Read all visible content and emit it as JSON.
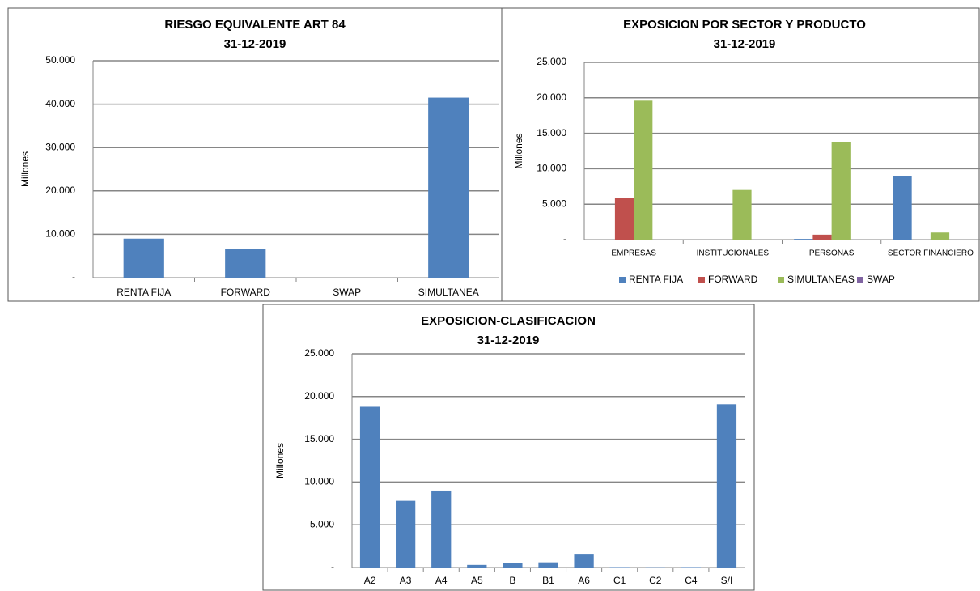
{
  "chart_data": [
    {
      "type": "bar",
      "title": "RIESGO EQUIVALENTE ART 84",
      "subtitle": "31-12-2019",
      "y_label": "Millones",
      "categories": [
        "RENTA FIJA",
        "FORWARD",
        "SWAP",
        "SIMULTANEA"
      ],
      "values": [
        9000,
        6700,
        0,
        41500
      ],
      "color": "#4f81bd",
      "ylim": [
        0,
        50000
      ],
      "yticks": [
        {
          "value": 0,
          "label": "-"
        },
        {
          "value": 10000,
          "label": "10.000"
        },
        {
          "value": 20000,
          "label": "20.000"
        },
        {
          "value": 30000,
          "label": "30.000"
        },
        {
          "value": 40000,
          "label": "40.000"
        },
        {
          "value": 50000,
          "label": "50.000"
        }
      ],
      "grid": true
    },
    {
      "type": "grouped_bar",
      "title": "EXPOSICION POR SECTOR Y PRODUCTO",
      "subtitle": "31-12-2019",
      "y_label": "Millones",
      "categories": [
        "EMPRESAS",
        "INSTITUCIONALES",
        "PERSONAS",
        "SECTOR FINANCIERO"
      ],
      "series": [
        {
          "name": "RENTA FIJA",
          "color": "#4f81bd",
          "values": [
            0,
            0,
            100,
            9000
          ]
        },
        {
          "name": "FORWARD",
          "color": "#c0504d",
          "values": [
            5900,
            0,
            700,
            0
          ]
        },
        {
          "name": "SIMULTANEAS",
          "color": "#9bbb59",
          "values": [
            19600,
            7000,
            13800,
            1000
          ]
        },
        {
          "name": "SWAP",
          "color": "#8064a2",
          "values": [
            0,
            0,
            0,
            0
          ]
        }
      ],
      "ylim": [
        0,
        25000
      ],
      "yticks": [
        {
          "value": 0,
          "label": "-"
        },
        {
          "value": 5000,
          "label": "5.000"
        },
        {
          "value": 10000,
          "label": "10.000"
        },
        {
          "value": 15000,
          "label": "15.000"
        },
        {
          "value": 20000,
          "label": "20.000"
        },
        {
          "value": 25000,
          "label": "25.000"
        }
      ],
      "grid": true,
      "legend": "bottom"
    },
    {
      "type": "bar",
      "title": "EXPOSICION-CLASIFICACION",
      "subtitle": "31-12-2019",
      "y_label": "Millones",
      "categories": [
        "A2",
        "A3",
        "A4",
        "A5",
        "B",
        "B1",
        "A6",
        "C1",
        "C2",
        "C4",
        "S/I"
      ],
      "values": [
        18800,
        7800,
        9000,
        300,
        500,
        600,
        1600,
        50,
        30,
        50,
        19100
      ],
      "color": "#4f81bd",
      "ylim": [
        0,
        25000
      ],
      "yticks": [
        {
          "value": 0,
          "label": "-"
        },
        {
          "value": 5000,
          "label": "5.000"
        },
        {
          "value": 10000,
          "label": "10.000"
        },
        {
          "value": 15000,
          "label": "15.000"
        },
        {
          "value": 20000,
          "label": "20.000"
        },
        {
          "value": 25000,
          "label": "25.000"
        }
      ],
      "grid": true
    }
  ]
}
